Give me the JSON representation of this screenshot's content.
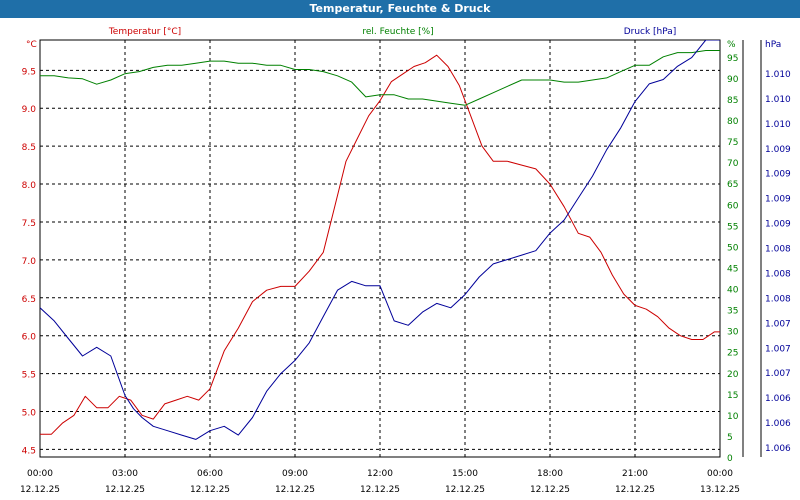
{
  "chart_data": {
    "type": "line",
    "title": "Temperatur, Feuchte & Druck",
    "colors": {
      "temp": "#cc0000",
      "hum": "#008000",
      "press": "#000099",
      "header": "#1f6fa8"
    },
    "x_ticks": [
      {
        "time": "00:00",
        "date": "12.12.25"
      },
      {
        "time": "03:00",
        "date": "12.12.25"
      },
      {
        "time": "06:00",
        "date": "12.12.25"
      },
      {
        "time": "09:00",
        "date": "12.12.25"
      },
      {
        "time": "12:00",
        "date": "12.12.25"
      },
      {
        "time": "15:00",
        "date": "12.12.25"
      },
      {
        "time": "18:00",
        "date": "12.12.25"
      },
      {
        "time": "21:00",
        "date": "12.12.25"
      },
      {
        "time": "00:00",
        "date": "13.12.25"
      }
    ],
    "xlim": [
      0,
      24
    ],
    "axes": {
      "temp": {
        "label": "Temperatur [°C]",
        "unit": "°C",
        "ylim": [
          4.4,
          9.9
        ],
        "ticks": [
          "9.5",
          "9.0",
          "8.5",
          "8.0",
          "7.5",
          "7.0",
          "6.5",
          "6.0",
          "5.5",
          "5.0",
          "4.5"
        ]
      },
      "hum": {
        "label": "rel. Feuchte [%]",
        "unit": "%",
        "ylim": [
          0,
          99
        ],
        "ticks": [
          "95",
          "90",
          "85",
          "80",
          "75",
          "70",
          "65",
          "60",
          "55",
          "50",
          "45",
          "40",
          "35",
          "30",
          "25",
          "20",
          "15",
          "10",
          "5",
          "0"
        ]
      },
      "press": {
        "label": "Druck [hPa]",
        "unit": "hPa",
        "ylim": [
          1005.6,
          1010.35
        ],
        "ticks": [
          "1.010",
          "1.010",
          "1.010",
          "1.009",
          "1.009",
          "1.009",
          "1.009",
          "1.008",
          "1.008",
          "1.008",
          "1.007",
          "1.007",
          "1.007",
          "1.006",
          "1.006",
          "1.006"
        ]
      }
    },
    "series": [
      {
        "name": "Temperatur [°C]",
        "axis": "temp",
        "color": "#cc0000",
        "x": [
          0,
          0.4,
          0.8,
          1.2,
          1.6,
          2.0,
          2.4,
          2.8,
          3.2,
          3.6,
          4.0,
          4.4,
          4.8,
          5.2,
          5.6,
          6.0,
          6.5,
          7.0,
          7.5,
          8.0,
          8.5,
          9.0,
          9.5,
          10.0,
          10.4,
          10.8,
          11.2,
          11.6,
          12.0,
          12.4,
          12.8,
          13.2,
          13.6,
          14.0,
          14.4,
          14.8,
          15.2,
          15.6,
          16.0,
          16.5,
          17.0,
          17.5,
          18.0,
          18.5,
          19.0,
          19.4,
          19.8,
          20.2,
          20.6,
          21.0,
          21.4,
          21.8,
          22.2,
          22.6,
          23.0,
          23.4,
          23.8,
          24.0
        ],
        "values": [
          4.7,
          4.7,
          4.85,
          4.95,
          5.2,
          5.05,
          5.05,
          5.2,
          5.15,
          4.95,
          4.9,
          5.1,
          5.15,
          5.2,
          5.15,
          5.3,
          5.8,
          6.1,
          6.45,
          6.6,
          6.65,
          6.65,
          6.85,
          7.1,
          7.7,
          8.3,
          8.6,
          8.9,
          9.1,
          9.35,
          9.45,
          9.55,
          9.6,
          9.7,
          9.55,
          9.3,
          8.9,
          8.5,
          8.3,
          8.3,
          8.25,
          8.2,
          8.0,
          7.7,
          7.35,
          7.3,
          7.1,
          6.8,
          6.55,
          6.4,
          6.35,
          6.25,
          6.1,
          6.0,
          5.95,
          5.95,
          6.05,
          6.05
        ]
      },
      {
        "name": "rel. Feuchte [%]",
        "axis": "hum",
        "color": "#008000",
        "x": [
          0,
          0.5,
          1.0,
          1.5,
          2.0,
          2.5,
          3.0,
          3.5,
          4.0,
          4.5,
          5.0,
          5.5,
          6.0,
          6.5,
          7.0,
          7.5,
          8.0,
          8.5,
          9.0,
          9.5,
          10.0,
          10.5,
          11.0,
          11.5,
          12.0,
          12.5,
          13.0,
          13.5,
          14.0,
          14.5,
          15.0,
          15.5,
          16.0,
          16.5,
          17.0,
          17.5,
          18.0,
          18.5,
          19.0,
          19.5,
          20.0,
          20.5,
          21.0,
          21.5,
          22.0,
          22.5,
          23.0,
          23.5,
          24.0
        ],
        "values": [
          90.5,
          90.5,
          90,
          89.8,
          88.5,
          89.5,
          91,
          91.5,
          92.5,
          93,
          93,
          93.5,
          94,
          94,
          93.5,
          93.5,
          93,
          93,
          92,
          92,
          91.5,
          90.5,
          89,
          85.5,
          86,
          86,
          85,
          85,
          84.5,
          84,
          83.5,
          85,
          86.5,
          88,
          89.5,
          89.5,
          89.5,
          89,
          89,
          89.5,
          90,
          91.5,
          93,
          93,
          95,
          96,
          96,
          96.5,
          96.5
        ]
      },
      {
        "name": "Druck [hPa]",
        "axis": "press",
        "color": "#000099",
        "x": [
          0,
          0.5,
          1.0,
          1.5,
          2.0,
          2.5,
          3.0,
          3.3,
          3.6,
          4.0,
          4.5,
          5.0,
          5.5,
          6.0,
          6.5,
          7.0,
          7.5,
          8.0,
          8.5,
          9.0,
          9.5,
          10.0,
          10.5,
          11.0,
          11.5,
          12.0,
          12.5,
          13.0,
          13.5,
          14.0,
          14.5,
          15.0,
          15.5,
          16.0,
          16.5,
          17.0,
          17.5,
          18.0,
          18.5,
          19.0,
          19.5,
          20.0,
          20.5,
          21.0,
          21.5,
          22.0,
          22.5,
          23.0,
          23.5,
          24.0
        ],
        "values": [
          1007.3,
          1007.15,
          1006.95,
          1006.75,
          1006.85,
          1006.75,
          1006.3,
          1006.15,
          1006.05,
          1005.95,
          1005.9,
          1005.85,
          1005.8,
          1005.9,
          1005.95,
          1005.85,
          1006.05,
          1006.35,
          1006.55,
          1006.7,
          1006.9,
          1007.2,
          1007.5,
          1007.6,
          1007.55,
          1007.55,
          1007.15,
          1007.1,
          1007.25,
          1007.35,
          1007.3,
          1007.45,
          1007.65,
          1007.8,
          1007.85,
          1007.9,
          1007.95,
          1008.15,
          1008.3,
          1008.55,
          1008.8,
          1009.1,
          1009.35,
          1009.65,
          1009.85,
          1009.9,
          1010.05,
          1010.15,
          1010.35,
          1010.35
        ]
      }
    ]
  }
}
